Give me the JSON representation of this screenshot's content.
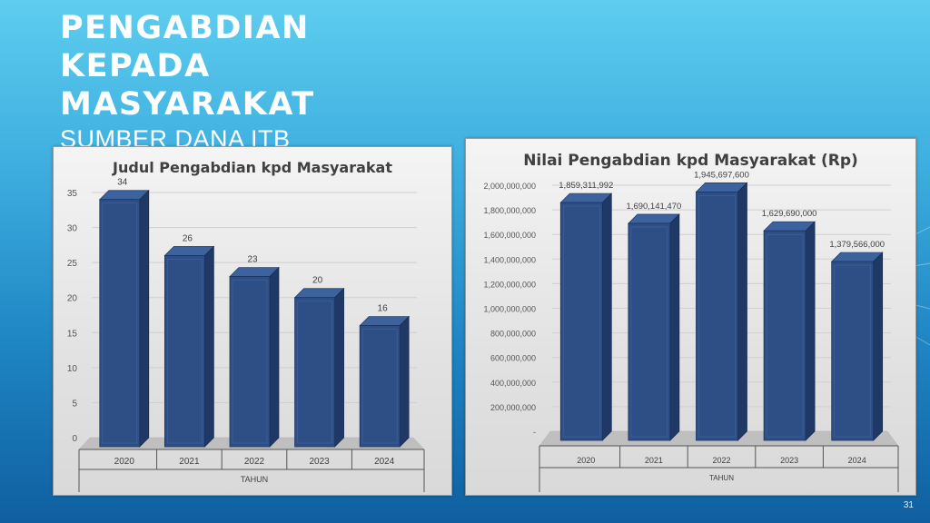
{
  "slide": {
    "title": "PENGABDIAN KEPADA MASYARAKAT",
    "subtitle": "SUMBER DANA ITB",
    "page_number": "31"
  },
  "chart_data": [
    {
      "type": "bar",
      "title": "Judul Pengabdian kpd Masyarakat",
      "xlabel": "TAHUN",
      "ylabel": "",
      "categories": [
        "2020",
        "2021",
        "2022",
        "2023",
        "2024"
      ],
      "values": [
        34,
        26,
        23,
        20,
        16
      ],
      "data_labels": [
        "34",
        "26",
        "23",
        "20",
        "16"
      ],
      "ylim": [
        0,
        35
      ],
      "yticks": [
        0,
        5,
        10,
        15,
        20,
        25,
        30,
        35
      ],
      "ytick_labels": [
        "0",
        "5",
        "10",
        "15",
        "20",
        "25",
        "30",
        "35"
      ],
      "grid": true,
      "bar_color": "#2e4f86"
    },
    {
      "type": "bar",
      "title": "Nilai Pengabdian kpd Masyarakat (Rp)",
      "xlabel": "TAHUN",
      "ylabel": "",
      "categories": [
        "2020",
        "2021",
        "2022",
        "2023",
        "2024"
      ],
      "values": [
        1859311992,
        1690141470,
        1945697600,
        1629690000,
        1379566000
      ],
      "data_labels": [
        "1,859,311,992",
        "1,690,141,470",
        "1,945,697,600",
        "1,629,690,000",
        "1,379,566,000"
      ],
      "ylim": [
        0,
        2000000000
      ],
      "yticks": [
        0,
        200000000,
        400000000,
        600000000,
        800000000,
        1000000000,
        1200000000,
        1400000000,
        1600000000,
        1800000000,
        2000000000
      ],
      "ytick_labels": [
        "-",
        "200,000,000",
        "400,000,000",
        "600,000,000",
        "800,000,000",
        "1,000,000,000",
        "1,200,000,000",
        "1,400,000,000",
        "1,600,000,000",
        "1,800,000,000",
        "2,000,000,000"
      ],
      "grid": true,
      "bar_color": "#2e4f86"
    }
  ]
}
